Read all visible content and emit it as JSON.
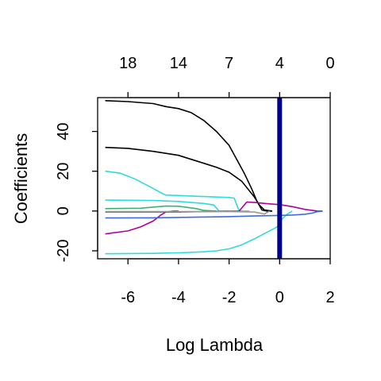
{
  "chart_data": {
    "type": "line",
    "title": "",
    "xlabel": "Log Lambda",
    "ylabel": "Coefficients",
    "xlim": [
      -7.2,
      2.0
    ],
    "ylim": [
      -24,
      57
    ],
    "x_ticks": [
      -6,
      -4,
      -2,
      0,
      2
    ],
    "x_tick_labels": [
      "-6",
      "-4",
      "-2",
      "0",
      "2"
    ],
    "y_ticks": [
      -20,
      0,
      20,
      40
    ],
    "y_tick_labels": [
      "-20",
      "0",
      "20",
      "40"
    ],
    "top_axis": {
      "label": "",
      "ticks": [
        -6,
        -4,
        -2,
        0,
        2
      ],
      "tick_labels": [
        "18",
        "14",
        "7",
        "4",
        "0"
      ]
    },
    "grid": false,
    "legend": "none",
    "vline": {
      "x": 0,
      "color": "#00008b"
    },
    "series": [
      {
        "color": "#000000",
        "x": [
          -6.9,
          -6.0,
          -5.0,
          -4.5,
          -4.0,
          -3.5,
          -3.0,
          -2.5,
          -2.0,
          -1.7,
          -1.4,
          -1.1,
          -0.9,
          -0.7,
          -0.5,
          -0.3
        ],
        "y": [
          55.5,
          55,
          54,
          52.5,
          51.5,
          49.5,
          45.5,
          40,
          33,
          26,
          19,
          11,
          5,
          0.5,
          0,
          0
        ]
      },
      {
        "color": "#000000",
        "x": [
          -6.9,
          -6.0,
          -5.0,
          -4.0,
          -3.5,
          -3.0,
          -2.5,
          -2.0,
          -1.5,
          -1.0,
          -0.8,
          -0.6,
          -0.3
        ],
        "y": [
          32,
          31.5,
          30,
          28,
          26,
          24,
          22,
          19.5,
          15,
          7,
          3,
          0.5,
          0
        ]
      },
      {
        "color": "#2fdbdb",
        "x": [
          -6.9,
          -6.3,
          -5.7,
          -5.1,
          -4.6,
          -4.5,
          -4.0,
          -3.0,
          -2.0,
          -1.8,
          -1.6,
          -1.2
        ],
        "y": [
          20,
          19,
          16,
          12,
          8.5,
          8,
          7.8,
          7.3,
          6.8,
          6.5,
          0,
          0
        ]
      },
      {
        "color": "#2fdbdb",
        "x": [
          -6.9,
          -5.0,
          -4.0,
          -3.0,
          -2.6,
          -2.4,
          -2.0
        ],
        "y": [
          5.5,
          5.3,
          4.8,
          3.8,
          3,
          0,
          0
        ]
      },
      {
        "color": "#2fdbdb",
        "x": [
          -6.9,
          -5.0,
          -4.0,
          -3.0,
          -2.5,
          -2.0,
          -1.5,
          -1.0,
          -0.7,
          -0.4,
          -0.1,
          0.1,
          0.3,
          0.5
        ],
        "y": [
          -21.5,
          -21.3,
          -21,
          -20.5,
          -20,
          -19,
          -17,
          -14,
          -12,
          -10,
          -8,
          -4,
          -1.5,
          0
        ]
      },
      {
        "color": "#3cb371",
        "x": [
          -6.9,
          -5.5,
          -4.5,
          -4.0,
          -3.3,
          -3.0,
          -2.5
        ],
        "y": [
          1.2,
          1.4,
          2.5,
          2.4,
          1.2,
          0.3,
          0
        ]
      },
      {
        "color": "#b2009e",
        "x": [
          -6.9,
          -6.0,
          -5.5,
          -5.0,
          -4.7,
          -4.5,
          -4.2,
          -4.0
        ],
        "y": [
          -11.5,
          -10,
          -8,
          -5,
          -2,
          -0.5,
          0,
          0
        ]
      },
      {
        "color": "#b2009e",
        "x": [
          -6.9,
          -4.0,
          -3.0,
          -1.6,
          -1.3,
          -1.0,
          -0.5,
          0.0,
          0.5,
          1.0,
          1.5,
          1.7
        ],
        "y": [
          -0.5,
          -0.5,
          -0.3,
          0,
          4.5,
          4.3,
          3.7,
          3.2,
          2.2,
          0.8,
          0,
          0
        ]
      },
      {
        "color": "#4169e1",
        "x": [
          -6.9,
          -5.0,
          -4.0,
          -3.0,
          -2.0,
          -1.0,
          0.0,
          0.5,
          1.0,
          1.3,
          1.5,
          1.7
        ],
        "y": [
          -3.5,
          -3.4,
          -3.2,
          -3,
          -2.8,
          -2.5,
          -2.2,
          -2,
          -1.6,
          -1,
          -0.3,
          0
        ]
      },
      {
        "color": "#999999",
        "x": [
          -6.9,
          -4.0,
          -2.0,
          -1.0,
          -0.6,
          -0.4
        ],
        "y": [
          -0.3,
          -0.3,
          -0.3,
          -0.5,
          -1.5,
          0
        ]
      }
    ]
  }
}
